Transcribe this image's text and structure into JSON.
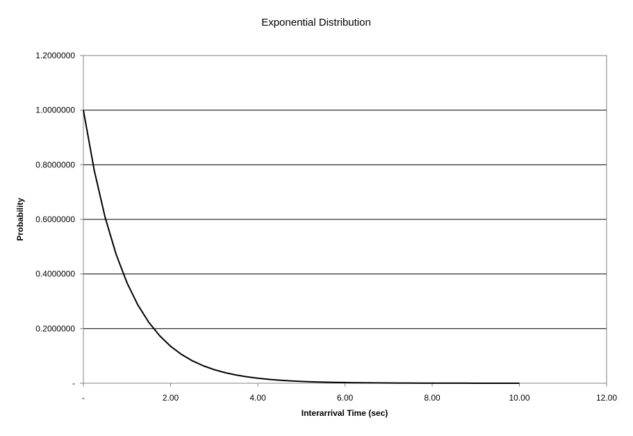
{
  "chart_data": {
    "type": "line",
    "title": "Exponential Distribution",
    "xlabel": "Interarrival Time (sec)",
    "ylabel": "Probability",
    "xlim": [
      0,
      12
    ],
    "ylim": [
      0,
      1.2
    ],
    "x_ticks": [
      0,
      2,
      4,
      6,
      8,
      10,
      12
    ],
    "x_tick_labels": [
      "-",
      "2.00",
      "4.00",
      "6.00",
      "8.00",
      "10.00",
      "12.00"
    ],
    "y_ticks": [
      0,
      0.2,
      0.4,
      0.6,
      0.8,
      1.0,
      1.2
    ],
    "y_tick_labels": [
      "-",
      "0.2000000",
      "0.4000000",
      "0.6000000",
      "0.8000000",
      "1.0000000",
      "1.2000000"
    ],
    "grid": "horizontal",
    "legend": "none",
    "series": [
      {
        "x": [
          0,
          0.25,
          0.5,
          0.75,
          1.0,
          1.25,
          1.5,
          1.75,
          2.0,
          2.25,
          2.5,
          2.75,
          3.0,
          3.25,
          3.5,
          3.75,
          4.0,
          4.25,
          4.5,
          4.75,
          5.0,
          5.25,
          5.5,
          5.75,
          6.0,
          6.25,
          6.5,
          6.75,
          7.0,
          7.25,
          7.5,
          7.75,
          8.0,
          8.25,
          8.5,
          8.75,
          9.0,
          9.25,
          9.5,
          9.75,
          10.0
        ],
        "y": [
          1.0,
          0.7788,
          0.6065,
          0.4724,
          0.3679,
          0.2865,
          0.2231,
          0.1738,
          0.1353,
          0.1054,
          0.0821,
          0.0639,
          0.0498,
          0.0388,
          0.0302,
          0.0235,
          0.0183,
          0.0143,
          0.0111,
          0.0087,
          0.0067,
          0.0052,
          0.0041,
          0.0032,
          0.0025,
          0.0019,
          0.0015,
          0.0012,
          0.0009,
          0.0007,
          0.0006,
          0.0004,
          0.0003,
          0.0003,
          0.0002,
          0.0002,
          0.0001,
          0.0001,
          0.0001,
          0.0001,
          0.0
        ]
      }
    ],
    "colors": {
      "line": "#000000",
      "grid": "#000000",
      "axis": "#808080",
      "background": "#ffffff"
    }
  }
}
